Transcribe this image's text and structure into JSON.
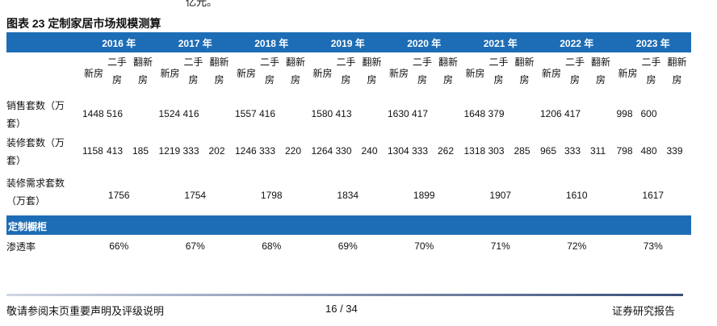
{
  "intro_fragment": "亿元。",
  "title": "图表 23 定制家居市场规模测算",
  "table": {
    "years": [
      "2016 年",
      "2017 年",
      "2018 年",
      "2019 年",
      "2020 年",
      "2021 年",
      "2022 年",
      "2023 年"
    ],
    "subheaders": [
      "新房",
      "二手房",
      "翻新房"
    ],
    "rows": [
      {
        "label": "销售套数（万套）",
        "values": [
          [
            "1448",
            "516",
            null
          ],
          [
            "1524",
            "416",
            null
          ],
          [
            "1557",
            "416",
            null
          ],
          [
            "1580",
            "413",
            null
          ],
          [
            "1630",
            "417",
            null
          ],
          [
            "1648",
            "379",
            null
          ],
          [
            "1206",
            "417",
            null
          ],
          [
            "998",
            "600",
            null
          ]
        ]
      },
      {
        "label": "装修套数（万套）",
        "values": [
          [
            "1158",
            "413",
            "185"
          ],
          [
            "1219",
            "333",
            "202"
          ],
          [
            "1246",
            "333",
            "220"
          ],
          [
            "1264",
            "330",
            "240"
          ],
          [
            "1304",
            "333",
            "262"
          ],
          [
            "1318",
            "303",
            "285"
          ],
          [
            "965",
            "333",
            "311"
          ],
          [
            "798",
            "480",
            "339"
          ]
        ]
      }
    ],
    "demand": {
      "label": "装修需求套数（万套）",
      "values": [
        "1756",
        "1754",
        "1798",
        "1834",
        "1899",
        "1907",
        "1610",
        "1617"
      ]
    },
    "section": "定制橱柜",
    "penetration": {
      "label": "渗透率",
      "values": [
        "66%",
        "67%",
        "68%",
        "69%",
        "70%",
        "71%",
        "72%",
        "73%"
      ]
    }
  },
  "footer": {
    "left": "敬请参阅末页重要声明及评级说明",
    "center": "16 / 34",
    "right": "证券研究报告"
  }
}
